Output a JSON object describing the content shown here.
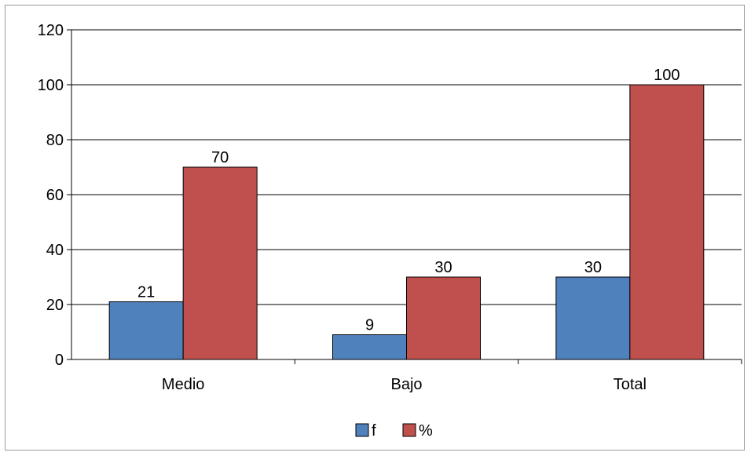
{
  "chart_data": {
    "type": "bar",
    "title": "",
    "xlabel": "",
    "ylabel": "",
    "categories": [
      "Medio",
      "Bajo",
      "Total"
    ],
    "series": [
      {
        "name": "f",
        "values": [
          21,
          9,
          30
        ],
        "color": "#4f81bd"
      },
      {
        "name": "%",
        "values": [
          70,
          30,
          100
        ],
        "color": "#c0504d"
      }
    ],
    "ylim": [
      0,
      120
    ],
    "yticks": [
      0,
      20,
      40,
      60,
      80,
      100,
      120
    ],
    "grid": true,
    "legend_position": "bottom",
    "data_labels": true
  }
}
